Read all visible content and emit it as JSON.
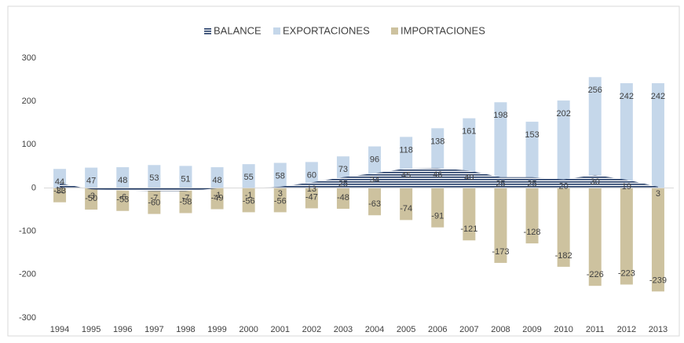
{
  "chart_data": {
    "type": "bar-area",
    "categories": [
      "1994",
      "1995",
      "1996",
      "1997",
      "1998",
      "1999",
      "2000",
      "2001",
      "2002",
      "2003",
      "2004",
      "2005",
      "2006",
      "2007",
      "2008",
      "2009",
      "2010",
      "2011",
      "2012",
      "2013"
    ],
    "series": [
      {
        "name": "BALANCE",
        "color": "#1f3864",
        "values": [
          11,
          -3,
          -6,
          -7,
          -7,
          -1,
          -1,
          3,
          13,
          25,
          34,
          45,
          46,
          40,
          25,
          25,
          20,
          30,
          19,
          3
        ]
      },
      {
        "name": "EXPORTACIONES",
        "color": "#c5d7ea",
        "values": [
          44,
          47,
          48,
          53,
          51,
          48,
          55,
          58,
          60,
          73,
          96,
          118,
          138,
          161,
          198,
          153,
          202,
          256,
          242,
          242
        ]
      },
      {
        "name": "IMPORTACIONES",
        "color": "#cdc29f",
        "values": [
          -33,
          -50,
          -53,
          -60,
          -58,
          -49,
          -56,
          -56,
          -47,
          -48,
          -63,
          -74,
          -91,
          -121,
          -173,
          -128,
          -182,
          -226,
          -223,
          -239
        ]
      }
    ],
    "ylim": [
      -300,
      300
    ],
    "yticks": [
      -300,
      -200,
      -100,
      0,
      100,
      200,
      300
    ],
    "grid": false,
    "legend": "top"
  }
}
